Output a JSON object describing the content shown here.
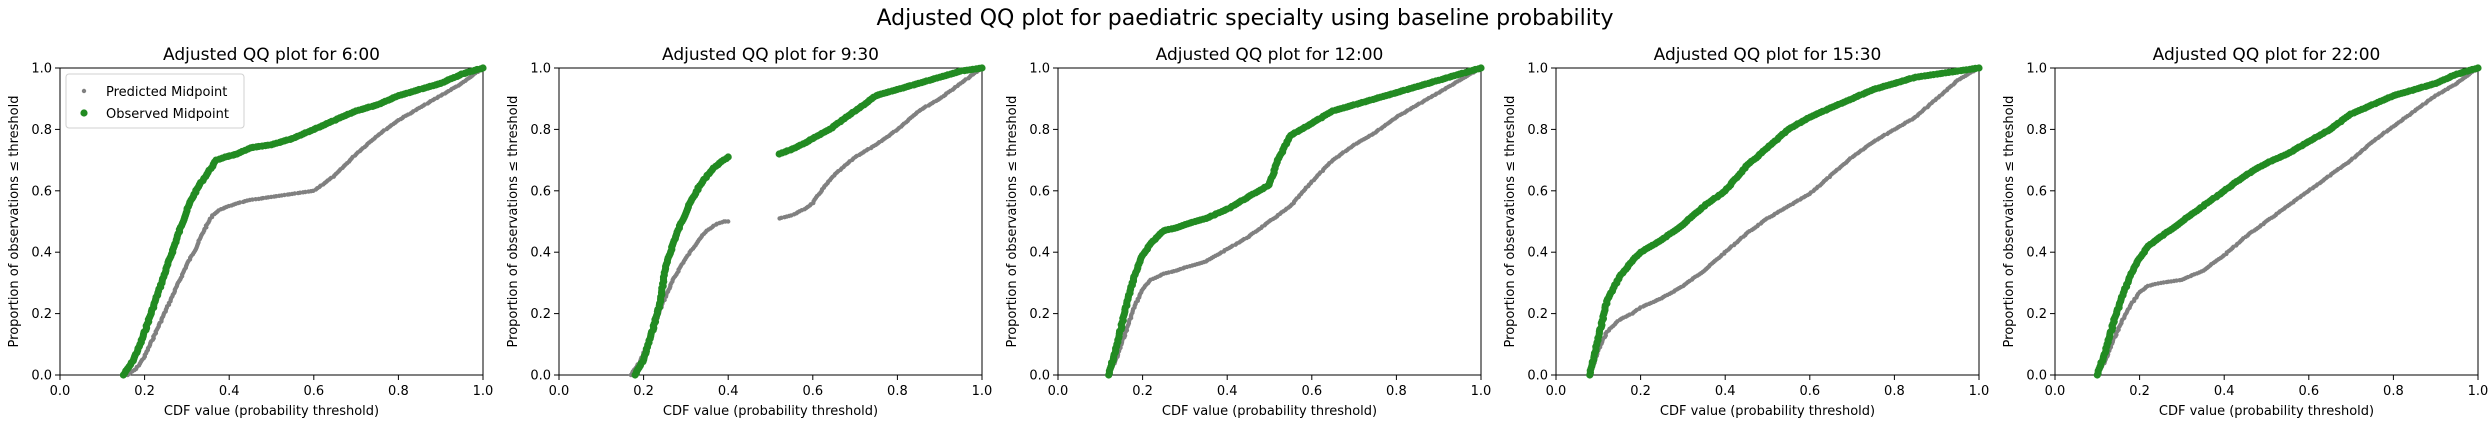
{
  "figure": {
    "title": "Adjusted QQ plot for paediatric specialty using baseline probability"
  },
  "chart_data": [
    {
      "type": "scatter",
      "title": "Adjusted QQ plot for 6:00",
      "xlabel": "CDF value (probability threshold)",
      "ylabel": "Proportion of observations ≤ threshold",
      "xlim": [
        0,
        1
      ],
      "ylim": [
        0,
        1
      ],
      "xticks": [
        "0.0",
        "0.2",
        "0.4",
        "0.6",
        "0.8",
        "1.0"
      ],
      "yticks": [
        "0.0",
        "0.2",
        "0.4",
        "0.6",
        "0.8",
        "1.0"
      ],
      "grid": false,
      "legend": {
        "placement": "upper-left",
        "entries": [
          "Predicted Midpoint",
          "Observed Midpoint"
        ]
      },
      "series": [
        {
          "name": "Predicted Midpoint",
          "color": "#808080",
          "marker": "small-dot",
          "x": [
            0.16,
            0.18,
            0.2,
            0.22,
            0.24,
            0.26,
            0.28,
            0.3,
            0.32,
            0.34,
            0.36,
            0.38,
            0.4,
            0.42,
            0.45,
            0.5,
            0.55,
            0.6,
            0.65,
            0.7,
            0.75,
            0.8,
            0.85,
            0.9,
            0.95,
            1.0
          ],
          "y": [
            0.0,
            0.02,
            0.06,
            0.12,
            0.18,
            0.24,
            0.3,
            0.36,
            0.41,
            0.47,
            0.52,
            0.54,
            0.55,
            0.56,
            0.57,
            0.58,
            0.59,
            0.6,
            0.65,
            0.72,
            0.78,
            0.83,
            0.87,
            0.91,
            0.95,
            1.0
          ]
        },
        {
          "name": "Observed Midpoint",
          "color": "#228b22",
          "marker": "dot",
          "x": [
            0.15,
            0.17,
            0.19,
            0.21,
            0.23,
            0.25,
            0.27,
            0.29,
            0.31,
            0.33,
            0.35,
            0.37,
            0.39,
            0.42,
            0.45,
            0.5,
            0.55,
            0.6,
            0.65,
            0.7,
            0.75,
            0.8,
            0.85,
            0.9,
            0.95,
            1.0
          ],
          "y": [
            0.0,
            0.04,
            0.1,
            0.18,
            0.26,
            0.34,
            0.42,
            0.5,
            0.57,
            0.62,
            0.66,
            0.7,
            0.71,
            0.72,
            0.74,
            0.75,
            0.77,
            0.8,
            0.83,
            0.86,
            0.88,
            0.91,
            0.93,
            0.95,
            0.98,
            1.0
          ]
        }
      ]
    },
    {
      "type": "scatter",
      "title": "Adjusted QQ plot for 9:30",
      "xlabel": "CDF value (probability threshold)",
      "ylabel": "Proportion of observations ≤ threshold",
      "xlim": [
        0,
        1
      ],
      "ylim": [
        0,
        1
      ],
      "xticks": [
        "0.0",
        "0.2",
        "0.4",
        "0.6",
        "0.8",
        "1.0"
      ],
      "yticks": [
        "0.0",
        "0.2",
        "0.4",
        "0.6",
        "0.8",
        "1.0"
      ],
      "grid": false,
      "series": [
        {
          "name": "Predicted Midpoint",
          "color": "#808080",
          "marker": "small-dot",
          "x": [
            0.17,
            0.19,
            0.21,
            0.23,
            0.25,
            0.27,
            0.29,
            0.31,
            0.33,
            0.35,
            0.37,
            0.39,
            0.4,
            0.52,
            0.55,
            0.58,
            0.6,
            0.62,
            0.65,
            0.7,
            0.75,
            0.8,
            0.85,
            0.9,
            0.95,
            1.0
          ],
          "y": [
            0.0,
            0.04,
            0.1,
            0.18,
            0.25,
            0.31,
            0.36,
            0.4,
            0.44,
            0.47,
            0.49,
            0.5,
            0.5,
            0.51,
            0.52,
            0.54,
            0.56,
            0.6,
            0.65,
            0.71,
            0.75,
            0.8,
            0.86,
            0.9,
            0.95,
            1.0
          ]
        },
        {
          "name": "Observed Midpoint",
          "color": "#228b22",
          "marker": "dot",
          "x": [
            0.18,
            0.2,
            0.22,
            0.24,
            0.25,
            0.27,
            0.29,
            0.31,
            0.33,
            0.35,
            0.37,
            0.4,
            0.52,
            0.56,
            0.6,
            0.64,
            0.68,
            0.72,
            0.75,
            0.8,
            0.85,
            0.9,
            0.95,
            1.0
          ],
          "y": [
            0.0,
            0.05,
            0.14,
            0.24,
            0.34,
            0.43,
            0.5,
            0.56,
            0.61,
            0.65,
            0.68,
            0.71,
            0.72,
            0.74,
            0.77,
            0.8,
            0.84,
            0.88,
            0.91,
            0.93,
            0.95,
            0.97,
            0.99,
            1.0
          ]
        }
      ]
    },
    {
      "type": "scatter",
      "title": "Adjusted QQ plot for 12:00",
      "xlabel": "CDF value (probability threshold)",
      "ylabel": "Proportion of observations ≤ threshold",
      "xlim": [
        0,
        1
      ],
      "ylim": [
        0,
        1
      ],
      "xticks": [
        "0.0",
        "0.2",
        "0.4",
        "0.6",
        "0.8",
        "1.0"
      ],
      "yticks": [
        "0.0",
        "0.2",
        "0.4",
        "0.6",
        "0.8",
        "1.0"
      ],
      "grid": false,
      "series": [
        {
          "name": "Predicted Midpoint",
          "color": "#808080",
          "marker": "small-dot",
          "x": [
            0.12,
            0.14,
            0.16,
            0.18,
            0.2,
            0.22,
            0.25,
            0.28,
            0.3,
            0.35,
            0.4,
            0.45,
            0.5,
            0.55,
            0.6,
            0.65,
            0.7,
            0.75,
            0.8,
            0.85,
            0.9,
            0.95,
            1.0
          ],
          "y": [
            0.0,
            0.06,
            0.14,
            0.22,
            0.28,
            0.31,
            0.33,
            0.34,
            0.35,
            0.37,
            0.41,
            0.45,
            0.5,
            0.55,
            0.63,
            0.7,
            0.75,
            0.79,
            0.84,
            0.88,
            0.92,
            0.96,
            1.0
          ]
        },
        {
          "name": "Observed Midpoint",
          "color": "#228b22",
          "marker": "dot",
          "x": [
            0.12,
            0.14,
            0.16,
            0.18,
            0.2,
            0.22,
            0.25,
            0.28,
            0.3,
            0.35,
            0.4,
            0.45,
            0.5,
            0.52,
            0.55,
            0.6,
            0.65,
            0.7,
            0.75,
            0.8,
            0.85,
            0.9,
            0.95,
            1.0
          ],
          "y": [
            0.0,
            0.1,
            0.22,
            0.32,
            0.39,
            0.43,
            0.47,
            0.48,
            0.49,
            0.51,
            0.54,
            0.58,
            0.62,
            0.7,
            0.78,
            0.82,
            0.86,
            0.88,
            0.9,
            0.92,
            0.94,
            0.96,
            0.98,
            1.0
          ]
        }
      ]
    },
    {
      "type": "scatter",
      "title": "Adjusted QQ plot for 15:30",
      "xlabel": "CDF value (probability threshold)",
      "ylabel": "Proportion of observations ≤ threshold",
      "xlim": [
        0,
        1
      ],
      "ylim": [
        0,
        1
      ],
      "xticks": [
        "0.0",
        "0.2",
        "0.4",
        "0.6",
        "0.8",
        "1.0"
      ],
      "yticks": [
        "0.0",
        "0.2",
        "0.4",
        "0.6",
        "0.8",
        "1.0"
      ],
      "grid": false,
      "series": [
        {
          "name": "Predicted Midpoint",
          "color": "#808080",
          "marker": "small-dot",
          "x": [
            0.08,
            0.1,
            0.12,
            0.15,
            0.18,
            0.2,
            0.25,
            0.3,
            0.35,
            0.4,
            0.45,
            0.5,
            0.55,
            0.6,
            0.65,
            0.7,
            0.75,
            0.8,
            0.85,
            0.9,
            0.95,
            1.0
          ],
          "y": [
            0.0,
            0.08,
            0.14,
            0.18,
            0.2,
            0.22,
            0.25,
            0.29,
            0.34,
            0.4,
            0.46,
            0.51,
            0.55,
            0.59,
            0.65,
            0.71,
            0.76,
            0.8,
            0.84,
            0.9,
            0.96,
            1.0
          ]
        },
        {
          "name": "Observed Midpoint",
          "color": "#228b22",
          "marker": "dot",
          "x": [
            0.08,
            0.1,
            0.12,
            0.15,
            0.18,
            0.2,
            0.25,
            0.3,
            0.35,
            0.4,
            0.45,
            0.5,
            0.55,
            0.6,
            0.65,
            0.7,
            0.75,
            0.8,
            0.85,
            0.9,
            0.95,
            1.0
          ],
          "y": [
            0.0,
            0.12,
            0.24,
            0.32,
            0.37,
            0.4,
            0.44,
            0.49,
            0.55,
            0.6,
            0.68,
            0.74,
            0.8,
            0.84,
            0.87,
            0.9,
            0.93,
            0.95,
            0.97,
            0.98,
            0.99,
            1.0
          ]
        }
      ]
    },
    {
      "type": "scatter",
      "title": "Adjusted QQ plot for 22:00",
      "xlabel": "CDF value (probability threshold)",
      "ylabel": "Proportion of observations ≤ threshold",
      "xlim": [
        0,
        1
      ],
      "ylim": [
        0,
        1
      ],
      "xticks": [
        "0.0",
        "0.2",
        "0.4",
        "0.6",
        "0.8",
        "1.0"
      ],
      "yticks": [
        "0.0",
        "0.2",
        "0.4",
        "0.6",
        "0.8",
        "1.0"
      ],
      "grid": false,
      "series": [
        {
          "name": "Predicted Midpoint",
          "color": "#808080",
          "marker": "small-dot",
          "x": [
            0.1,
            0.12,
            0.14,
            0.16,
            0.18,
            0.2,
            0.22,
            0.25,
            0.3,
            0.35,
            0.4,
            0.45,
            0.5,
            0.55,
            0.6,
            0.65,
            0.7,
            0.75,
            0.8,
            0.85,
            0.9,
            0.95,
            1.0
          ],
          "y": [
            0.0,
            0.05,
            0.12,
            0.18,
            0.23,
            0.27,
            0.29,
            0.3,
            0.31,
            0.34,
            0.39,
            0.45,
            0.5,
            0.55,
            0.6,
            0.65,
            0.7,
            0.76,
            0.81,
            0.86,
            0.91,
            0.95,
            1.0
          ]
        },
        {
          "name": "Observed Midpoint",
          "color": "#228b22",
          "marker": "dot",
          "x": [
            0.1,
            0.12,
            0.14,
            0.16,
            0.18,
            0.2,
            0.22,
            0.25,
            0.3,
            0.35,
            0.4,
            0.45,
            0.5,
            0.55,
            0.6,
            0.65,
            0.7,
            0.75,
            0.8,
            0.85,
            0.9,
            0.95,
            1.0
          ],
          "y": [
            0.0,
            0.08,
            0.18,
            0.26,
            0.33,
            0.38,
            0.42,
            0.45,
            0.5,
            0.55,
            0.6,
            0.65,
            0.69,
            0.72,
            0.76,
            0.8,
            0.85,
            0.88,
            0.91,
            0.93,
            0.95,
            0.98,
            1.0
          ]
        }
      ]
    }
  ]
}
